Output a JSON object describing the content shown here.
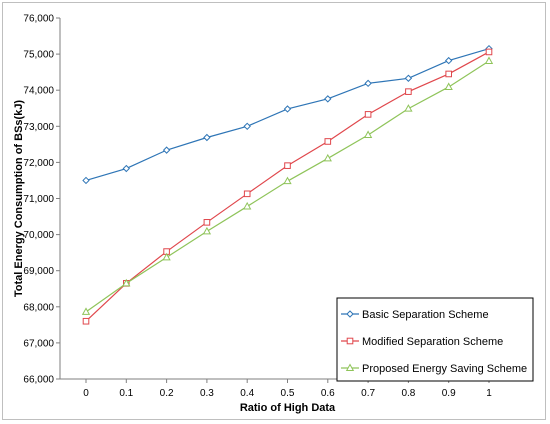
{
  "chart_data": {
    "type": "line",
    "title": "",
    "xlabel": "Ratio of High Data",
    "ylabel": "Total Energy Consumption of BSs(kJ)",
    "x": [
      0,
      0.1,
      0.2,
      0.3,
      0.4,
      0.5,
      0.6,
      0.7,
      0.8,
      0.9,
      1
    ],
    "x_tick_labels": [
      "0",
      "0.1",
      "0.2",
      "0.3",
      "0.4",
      "0.5",
      "0.6",
      "0.7",
      "0.8",
      "0.9",
      "1"
    ],
    "ylim": [
      66000,
      76000
    ],
    "y_ticks": [
      66000,
      67000,
      68000,
      69000,
      70000,
      71000,
      72000,
      73000,
      74000,
      75000,
      76000
    ],
    "y_tick_labels": [
      "66,000",
      "67,000",
      "68,000",
      "69,000",
      "70,000",
      "71,000",
      "72,000",
      "73,000",
      "74,000",
      "75,000",
      "76,000"
    ],
    "grid": false,
    "legend_position": "bottom-right",
    "series": [
      {
        "name": "Basic Separation Scheme",
        "color": "#2e75b6",
        "marker": "diamond",
        "values": [
          71500,
          71830,
          72340,
          72690,
          73000,
          73480,
          73760,
          74190,
          74330,
          74820,
          75150
        ]
      },
      {
        "name": "Modified Separation Scheme",
        "color": "#e0474c",
        "marker": "square",
        "values": [
          67600,
          68650,
          69530,
          70340,
          71130,
          71910,
          72580,
          73330,
          73960,
          74450,
          75060
        ]
      },
      {
        "name": "Proposed Energy Saving Scheme",
        "color": "#8fc45a",
        "marker": "triangle",
        "values": [
          67860,
          68650,
          69370,
          70090,
          70780,
          71480,
          72110,
          72760,
          73490,
          74090,
          74810
        ]
      }
    ]
  }
}
